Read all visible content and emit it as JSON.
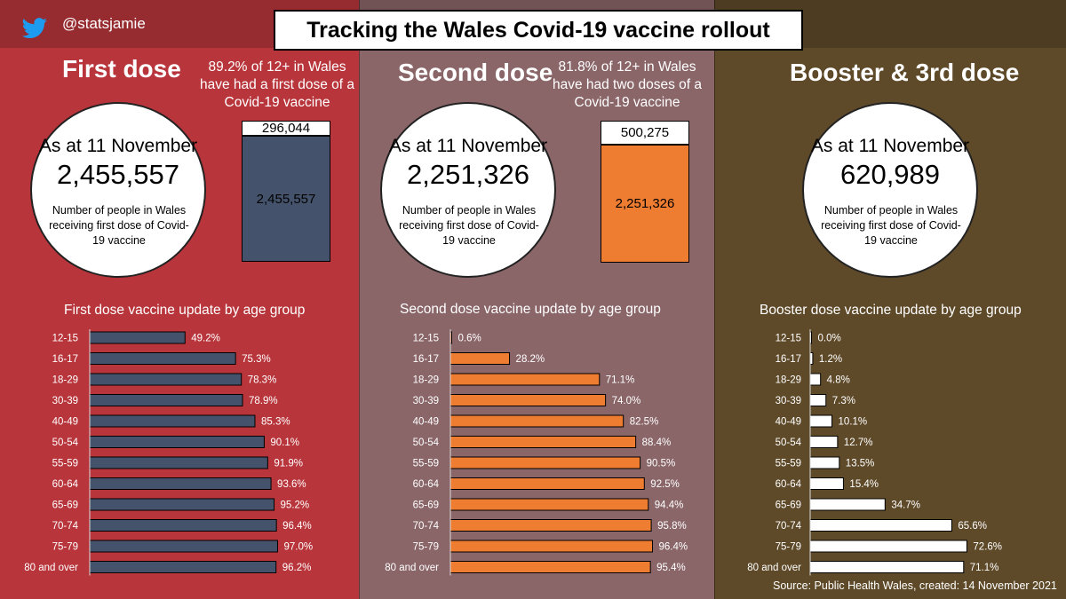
{
  "header": {
    "handle": "@statsjamie",
    "title": "Tracking the Wales Covid-19 vaccine rollout",
    "twitter_color": "#1d9bf0"
  },
  "panels": {
    "first": {
      "heading": "First dose",
      "note": "89.2% of 12+ in Wales have had a first dose of a Covid-19 vaccine",
      "as_at": "As at 11 November",
      "total": "2,455,557",
      "desc": "Number of people in Wales receiving first dose of Covid-19 vaccine",
      "stack_remaining": "296,044",
      "stack_done": "2,455,557",
      "bg": "#b8353b",
      "bar_color": "#44536b"
    },
    "second": {
      "heading": "Second dose",
      "note": "81.8% of 12+ in Wales have had two doses of a Covid-19 vaccine",
      "as_at": "As at 11 November",
      "total": "2,251,326",
      "desc": "Number of people in Wales receiving first dose of Covid-19 vaccine",
      "stack_remaining": "500,275",
      "stack_done": "2,251,326",
      "bg": "#8a6669",
      "bar_color": "#ee7c31"
    },
    "booster": {
      "heading": "Booster & 3rd dose",
      "as_at": "As at 11 November",
      "total": "620,989",
      "desc": "Number of people in Wales receiving first dose of Covid-19 vaccine",
      "bg": "#5e4a29",
      "bar_color": "#ffffff"
    }
  },
  "chart_data": [
    {
      "type": "bar",
      "orientation": "horizontal",
      "title": "First dose vaccine update by age group",
      "categories": [
        "12-15",
        "16-17",
        "18-29",
        "30-39",
        "40-49",
        "50-54",
        "55-59",
        "60-64",
        "65-69",
        "70-74",
        "75-79",
        "80 and over"
      ],
      "values": [
        49.2,
        75.3,
        78.3,
        78.9,
        85.3,
        90.1,
        91.9,
        93.6,
        95.2,
        96.4,
        97.0,
        96.2
      ],
      "value_labels": [
        "49.2%",
        "75.3%",
        "78.3%",
        "78.9%",
        "85.3%",
        "90.1%",
        "91.9%",
        "93.6%",
        "95.2%",
        "96.4%",
        "97.0%",
        "96.2%"
      ],
      "xlim": [
        0,
        100
      ],
      "unit": "%"
    },
    {
      "type": "bar",
      "orientation": "horizontal",
      "title": "Second dose vaccine update by age group",
      "categories": [
        "12-15",
        "16-17",
        "18-29",
        "30-39",
        "40-49",
        "50-54",
        "55-59",
        "60-64",
        "65-69",
        "70-74",
        "75-79",
        "80 and over"
      ],
      "values": [
        0.6,
        28.2,
        71.1,
        74.0,
        82.5,
        88.4,
        90.5,
        92.5,
        94.4,
        95.8,
        96.4,
        95.4
      ],
      "value_labels": [
        "0.6%",
        "28.2%",
        "71.1%",
        "74.0%",
        "82.5%",
        "88.4%",
        "90.5%",
        "92.5%",
        "94.4%",
        "95.8%",
        "96.4%",
        "95.4%"
      ],
      "xlim": [
        0,
        100
      ],
      "unit": "%"
    },
    {
      "type": "bar",
      "orientation": "horizontal",
      "title": "Booster dose vaccine update by age group",
      "categories": [
        "12-15",
        "16-17",
        "18-29",
        "30-39",
        "40-49",
        "50-54",
        "55-59",
        "60-64",
        "65-69",
        "70-74",
        "75-79",
        "80 and over"
      ],
      "values": [
        0.0,
        1.2,
        4.8,
        7.3,
        10.1,
        12.7,
        13.5,
        15.4,
        34.7,
        65.6,
        72.6,
        71.1
      ],
      "value_labels": [
        "0.0%",
        "1.2%",
        "4.8%",
        "7.3%",
        "10.1%",
        "12.7%",
        "13.5%",
        "15.4%",
        "34.7%",
        "65.6%",
        "72.6%",
        "71.1%"
      ],
      "xlim": [
        0,
        100
      ],
      "unit": "%"
    }
  ],
  "footer": {
    "source": "Source:  Public Health Wales, created: 14 November 2021"
  }
}
